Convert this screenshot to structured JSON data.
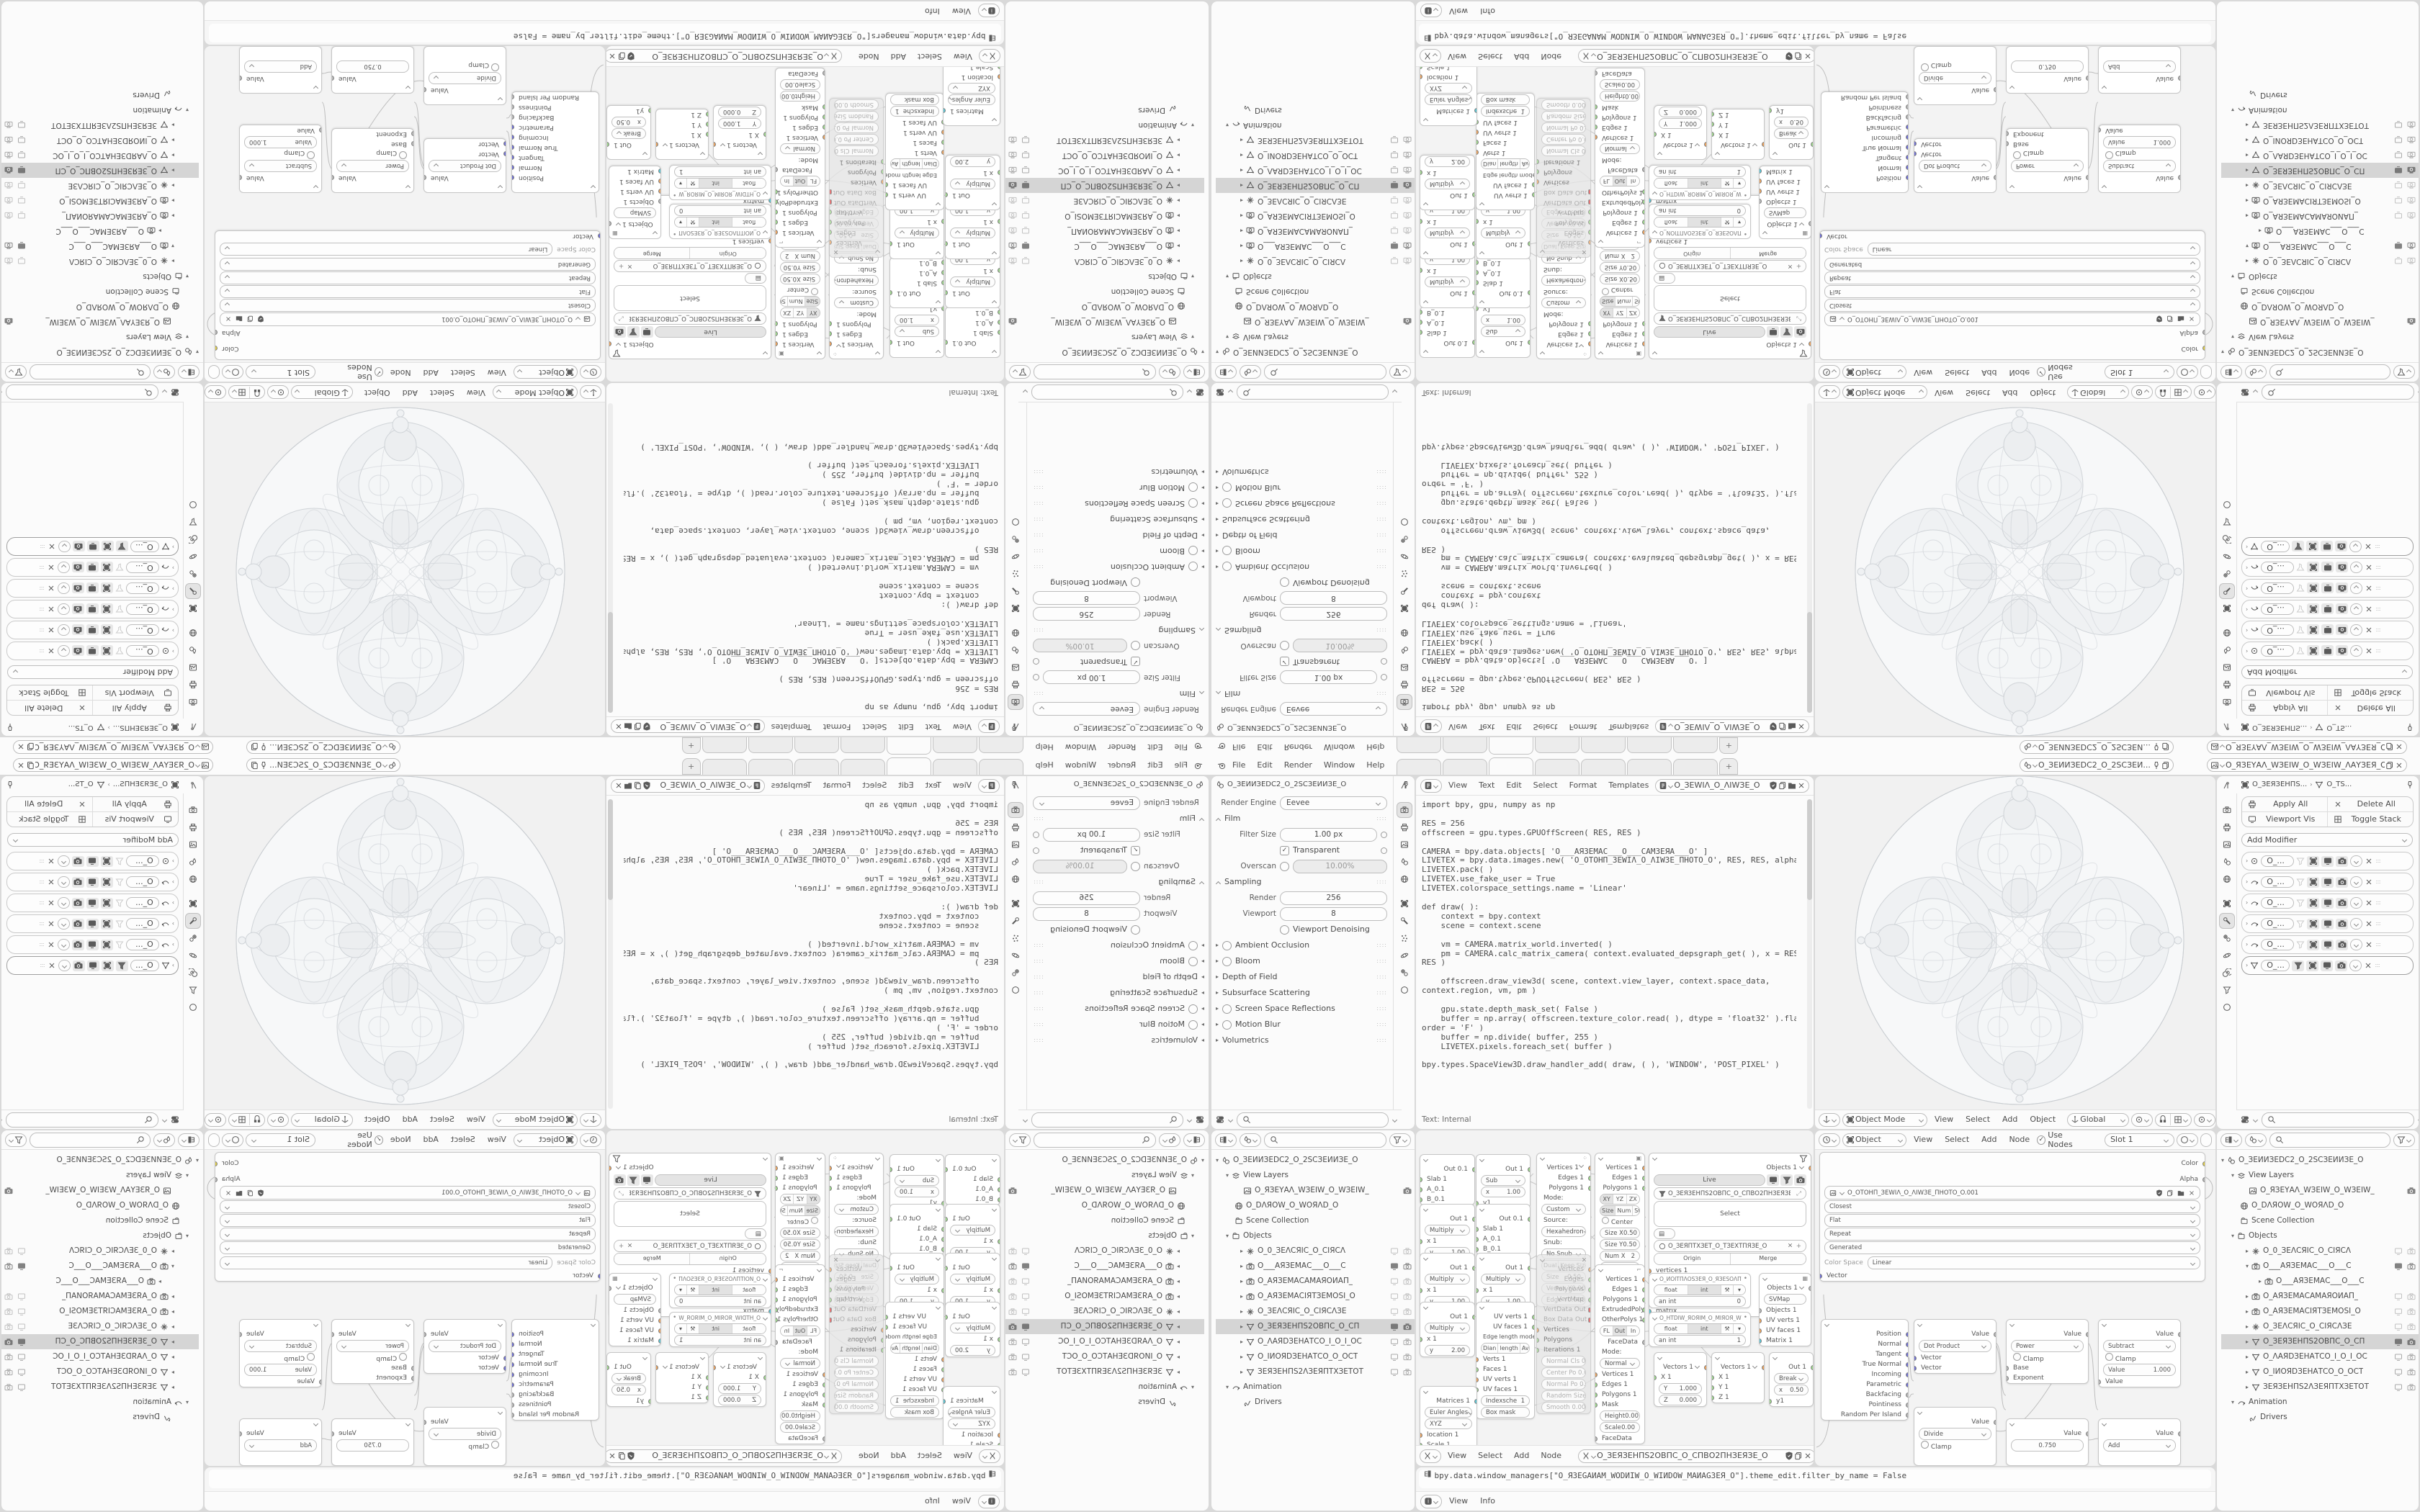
{
  "colors": {
    "accent": "#4772b3",
    "socket_green": "#9ed98c",
    "socket_orange": "#eea35c",
    "socket_cyan": "#56c8d8",
    "socket_vector": "#6d6dd8",
    "socket_yellow": "#e3cf45",
    "status": "#dd4a4a"
  },
  "topbar": {
    "menus": [
      "File",
      "Edit",
      "Render",
      "Window",
      "Help"
    ],
    "new_tab": "+",
    "scene_name": "O_ЗЕИИЗЕDС2_O_2ЅСЗЕИ...",
    "view_layer_name": "O_ЯЗЕYАΛ_WЗЕIW_O_WЗЕIW_ΛАYЗЕЯ_O"
  },
  "props_render": {
    "breadcrumb": "O_ЗЕИИЗЕDС2_O_2ЅСЗЕИИЗЕ_O",
    "engine_label": "Render Engine",
    "engine": "Eevee",
    "film": "Film",
    "filter_size_label": "Filter Size",
    "filter_size": "1.00 px",
    "transparent": "Transparent",
    "overscan": "Overscan",
    "overscan_value": "10.00%",
    "sampling": "Sampling",
    "render_label": "Render",
    "render_samples": "256",
    "viewport_label": "Viewport",
    "viewport_samples": "8",
    "denoising": "Viewport Denoising",
    "sections": [
      "Ambient Occlusion",
      "Bloom",
      "Depth of Field",
      "Subsurface Scattering",
      "Screen Space Reflections",
      "Motion Blur",
      "Volumetrics"
    ]
  },
  "text_editor": {
    "menus": [
      "View",
      "Text",
      "Edit",
      "Select",
      "Format",
      "Templates"
    ],
    "datablock": "O_ЗЕWIΛ_O_ΛIWЗЕ_O",
    "footer": "Text: Internal",
    "code": "import bpy, gpu, numpy as np\n\nRES = 256\noffscreen = gpu.types.GPUOffScreen( RES, RES )\n\nCAMERA = bpy.data.objects[ 'O___АЯЗЕМАС___O___САМЗЕЯА___O' ]\nLIVETEX = bpy.data.images.new( 'O_ОТОНП_ЗЕWIΛ_O_ΛIWЗЕ_ПНОТО_O', RES, RES, alpha = True )\nLIVETEX.pack( )\nLIVETEX.use_fake_user = True\nLIVETEX.colorspace_settings.name = 'Linear'\n\ndef draw( ):\n    context = bpy.context\n    scene = context.scene\n\n    vm = CAMERA.matrix_world.inverted( )\n    pm = CAMERA.calc_matrix_camera( context.evaluated_depsgraph_get( ), x = RES, y =\nRES )\n\n    offscreen.draw_view3d( scene, context.view_layer, context.space_data,\ncontext.region, vm, pm )\n\n    gpu.state.depth_mask_set( False )\n    buffer = np.array( offscreen.texture_color.read( ), dtype = 'float32' ).flatten(\norder = 'F' )\n    buffer = np.divide( buffer, 255 )\n    LIVETEX.pixels.foreach_set( buffer )\n\nbpy.types.SpaceView3D.draw_handler_add( draw, ( ), 'WINDOW', 'POST_PIXEL' )"
  },
  "viewport": {
    "mode": "Object Mode",
    "menus": [
      "View",
      "Select",
      "Add",
      "Object"
    ],
    "orientation": "Global"
  },
  "shader": {
    "object": "Object",
    "menus": [
      "View",
      "Select",
      "Add",
      "Node"
    ],
    "use_nodes": "Use Nodes",
    "slot": "Slot 1",
    "material": "O_ЗЕЯП...",
    "crumb1": "O_ЗЕЯЗЕНПЅ...2ЅПНЗЕЯЗЕ_O",
    "crumb2": "O_ЗЕЯЗЕНПЅ...ЅПНЗЕЯЗЕ_O",
    "crumb3": "O_ЗЕЯП...ТИАЯВIΛ",
    "image_node": {
      "color_out": "Color",
      "alpha_out": "Alpha",
      "datablock": "O_ОТОНП_ЗЕWIΛ_O_ΛIWЗЕ_ПНОТО_O.001",
      "interp": "Closest",
      "projection": "Flat",
      "extension": "Repeat",
      "source": "Generated",
      "color_space_label": "Color Space",
      "color_space": "Linear",
      "vector_in": "Vector"
    },
    "geometry_node": {
      "outputs": [
        "Position",
        "Normal",
        "Tangent",
        "True Normal",
        "Incoming",
        "Parametric",
        "Backfacing",
        "Pointiness",
        "Random Per Island"
      ]
    },
    "dot": {
      "out": "Value",
      "op": "Dot Product",
      "in1": "Vector",
      "in2": "Vector"
    },
    "power": {
      "out": "Value",
      "op": "Power",
      "clamp": "Clamp",
      "in1": "Base",
      "in2": "Exponent"
    },
    "subtract": {
      "out": "Value",
      "op": "Subtract",
      "clamp": "Clamp",
      "value_label": "Value",
      "value": "1.000",
      "in2": "Value"
    },
    "divide": {
      "out": "Value",
      "op": "Divide",
      "clamp": "Clamp"
    },
    "value_node": {
      "out": "Value",
      "value": "0.750"
    },
    "add": {
      "out": "Value",
      "op": "Add"
    }
  },
  "props_modifier": {
    "crumb1": "O_ЗЕЯЗЕНПЅ...",
    "crumb2": "O_ТЅ...",
    "apply_all": "Apply All",
    "delete_all": "Delete All",
    "viewport_vis": "Viewport Vis",
    "toggle_stack": "Toggle Stack",
    "add_modifier": "Add Modifier",
    "row_name": "O_..."
  },
  "outliner": {
    "scene": "O_ЗЕИИЗЕDС2_O_2ЅСЗЕИИЗЕ_O",
    "view_layers": "View Layers",
    "view_layer": "O_ЯЗЕYАΛ_WЗЕIW_O_WЗЕIW_",
    "world": "O_DΛЯOW_O_WОЯΛD_O",
    "scene_collection": "Scene Collection",
    "objects": "Objects",
    "animation": "Animation",
    "drivers": "Drivers",
    "items": [
      "O_0_ЗЕΛСЯIС_O_СIЯСΛ",
      "O___АЯЗЕМАС___O___С",
      "O_АЯЗЕМАСАМАЯОИАП_",
      "O_АЯЗЕМАСIЯТЗЕМОЅI_O",
      "O_ЗЕΛСЯIС_O_СIЯСΛЗЕ",
      "O_ЗЕЯЗЕНПЅ2ОВПС_O_СП",
      "O_ΛАЯDЗЕНАТСО_I_O_I_ОС",
      "O_IИОЯDЗЕНАТСО_O_ОСТ",
      "ЗЕЯЗЕНПЅ2ΛЗЕЯПТХЗЕТОТ"
    ]
  },
  "sverchok": {
    "menus": [
      "View",
      "Select",
      "Add",
      "Node"
    ],
    "datablock": "O_ЗЕЯЗЕНПЅ2ОВПС_O_СПВО2ПНЗЕЯЗЕ_O",
    "slab": {
      "out": "Out 0.1",
      "r1": "Slab 1",
      "r2": "A_0.1",
      "r3": "B_0.1"
    },
    "sub": {
      "out": "Out 1",
      "fn": "Sub",
      "x": "x",
      "xv": "1.00",
      "y": "y1"
    },
    "mul": {
      "out": "Out 1",
      "fn": "Multiply",
      "x": "x 1",
      "y": "y",
      "yv": "1.00"
    },
    "mul2": {
      "yv": "2.00"
    },
    "brk": {
      "out": "Out 1",
      "fn": "Break",
      "x": "x",
      "xv": "0.50",
      "y": "y1"
    },
    "edge": {
      "o1": "UV verts 1",
      "o2": "UV faces 1",
      "t": "Edge length mode",
      "b1": "Dian",
      "b2": "length",
      "b3": "Average",
      "i1": "Verts 1",
      "i2": "Faces 1",
      "i3": "UV verts 1",
      "i4": "UV faces 1",
      "idx": "Indexsche",
      "idxv": "1",
      "all": "All",
      "mask": "Box mask"
    },
    "matrices": {
      "out": "Matrices 1",
      "f1": "Euler Angles",
      "f2": "XYZ",
      "i1": "location 1",
      "i2": "Scale 1",
      "a1": "Angle X",
      "a1v": "0.000",
      "a2": "Angle Y",
      "a2v": "0.000",
      "a3": "Angle Z",
      "a3v": "0.000"
    },
    "hexa": {
      "o1": "Vertices 1",
      "o2": "Edges 1",
      "o3": "Polygons 1",
      "mode_l": "Mode:",
      "mode": "Custom",
      "src_l": "Source:",
      "src": "Hexahedron",
      "snub_l": "Snub:",
      "snub": "No Snub",
      "dual": "Dual",
      "keep": "Keep Size",
      "size": "Size",
      "sizev": "0.50",
      "vy": "Vertex Y",
      "vyv": "0.000",
      "ey": "Edge Y",
      "eyv": "0.000"
    },
    "plane": {
      "o1": "Vertices 1",
      "o2": "Edges 1",
      "o3": "Polygons 1",
      "ax1": "XY",
      "ax2": "YZ",
      "ax3": "ZX",
      "dm1": "Size",
      "dm2": "Num",
      "dm3": "Steps",
      "dm4": "St+St",
      "center": "Center",
      "sx": "Size X",
      "sxv": "0.50",
      "sy": "Size Y",
      "syv": "0.50",
      "nx": "Num X",
      "nxv": "2",
      "ny": "Num Y",
      "nyv": "2",
      "matrix": "Matrix"
    },
    "muted": {
      "o1": "Vertices",
      "o2": "Edges",
      "o3": "Polygons",
      "o4": "VertMap",
      "o5": "VertData Out",
      "o6": "Box Data Out",
      "i1": "Vertices",
      "i2": "Polygons",
      "i3": "Iterations 1",
      "f1": "Normal Cls 0.00",
      "f2": "Center Po 0.00",
      "f3": "Normal Po 0.00",
      "f4": "Random Size 0",
      "f5": "Smooth 0.00"
    },
    "extrude": {
      "o1": "Vertices 1",
      "o2": "Edges 1",
      "o3": "Polygons 1",
      "o4": "ExtrudedPolys",
      "o5": "OtherPolys 1",
      "m1": "FL",
      "m2": "Out",
      "m3": "In",
      "mask": "Mask",
      "fd": "FaceData",
      "mode_l": "Mode:",
      "mode": "Normal",
      "i1": "Vertices 1",
      "i2": "Edges 1",
      "i3": "Polygons 1",
      "i4": "Mask",
      "h": "Height",
      "hv": "0.00",
      "s": "Scale",
      "sv": "0.00"
    },
    "viewer": {
      "out": "Objects 1",
      "live": "Live",
      "db": "O_ЗЕЯЗЕНПЅ2ОВПС_O_СПВО2ПНЗЕЯЗЕ_O",
      "select": "Select",
      "mat": "O_ЗЕЯПТХЗЕТ_O_ТЗЕХТПЯЗЕ_O",
      "origin": "Origin",
      "merge": "Merge",
      "r1": "vertices 1",
      "r2": "edges",
      "r3": "faces 1",
      "r4": "material_idx",
      "r5": "matrix"
    },
    "float1": {
      "title": "O_ИОIТПΛОЅЗЕЯ_O_ЯЗЕЅОΛПТIОИ_O",
      "f": "float",
      "i": "int",
      "field": "an int",
      "val": "0"
    },
    "float2": {
      "title": "O_НТDIW_ЯОЯIМ_O_МIЯОЯ_WIDТН_O",
      "f": "float",
      "i": "int",
      "field": "an int",
      "val": "1"
    },
    "svmap": {
      "out": "Objects 1",
      "field": "SVMap",
      "i1": "Objects 1",
      "i2": "UV verts 1",
      "i3": "UV faces 1",
      "i4": "Matrix 1"
    },
    "vec1": {
      "out": "Vectors 1",
      "x": "X 1",
      "y": "Y",
      "yv": "1.000",
      "z": "Z",
      "zv": "0.000"
    },
    "vec2": {
      "out": "Vectors 1",
      "x": "X 1",
      "y": "Y 1",
      "z": "Z 1"
    }
  },
  "info": {
    "log": "bpy.data.window_managers[\"O_ЯЗЕGАИАМ_WОDИIW_O_WIИDОW_МАИАGЗЕЯ_O\"].theme_edit.filter_by_name = False",
    "menus": [
      "View",
      "Info"
    ]
  }
}
